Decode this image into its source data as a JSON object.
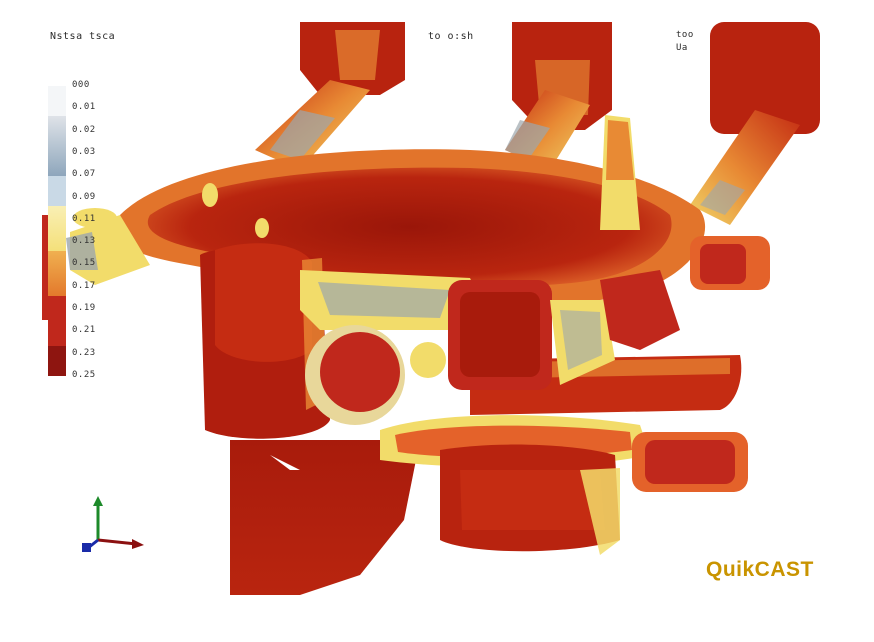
{
  "header": {
    "left_text": "Nstsa tsca",
    "center_text": "to o:sh",
    "right_line1": "too",
    "right_line2": "Ua"
  },
  "legend": {
    "ticks": [
      "000",
      "0.01",
      "0.02",
      "0.03",
      "0.07",
      "0.09",
      "0.11",
      "0.13",
      "0.15",
      "0.17",
      "0.19",
      "0.21",
      "0.23",
      "0.25"
    ],
    "colors": {
      "top": "#f4f6f8",
      "blue_gray": "#8ea6bc",
      "pale_blue": "#c9d9e6",
      "yellow": "#f4e07a",
      "orange": "#e3792c",
      "red": "#c0281c",
      "dark_red": "#8e1510"
    }
  },
  "brand": {
    "name": "QuikCAST",
    "color": "#c99400"
  },
  "render_colors": {
    "casting_red": "#b5200f",
    "casting_dark": "#8b130a",
    "hot_orange": "#e4622a",
    "yellow": "#f2dc6a",
    "gray": "#9ca6ad"
  },
  "axis_triad": {
    "x_color": "#8b1010",
    "y_color": "#1d8a2a",
    "z_color": "#1a2ba8"
  }
}
